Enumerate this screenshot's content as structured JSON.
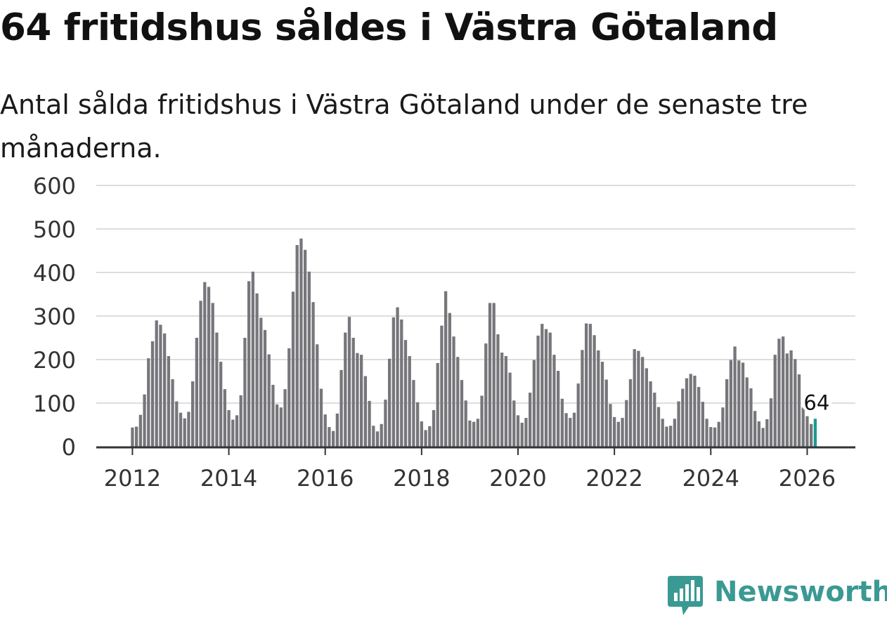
{
  "title": "64 fritidshus såldes i Västra Götaland",
  "subtitle": "Antal sålda fritidshus i Västra Götaland under de senaste tre månaderna.",
  "brand": {
    "name": "Newsworthy",
    "color": "#3a9a93",
    "icon": "bar-chart-speech-bubble-icon"
  },
  "colors": {
    "bar": "#77767b",
    "highlight": "#1a9a90",
    "grid": "#dddddd",
    "axis": "#333333",
    "tick_text": "#333333"
  },
  "chart_data": {
    "type": "bar",
    "title": "64 fritidshus såldes i Västra Götaland",
    "subtitle": "Antal sålda fritidshus i Västra Götaland under de senaste tre månaderna.",
    "xlabel": "",
    "ylabel": "",
    "ylim": [
      0,
      600
    ],
    "yticks": [
      "0",
      "100",
      "200",
      "300",
      "400",
      "500",
      "600"
    ],
    "xlim": [
      2011.25,
      2027.0
    ],
    "xticks": [
      "2012",
      "2014",
      "2016",
      "2018",
      "2020",
      "2022",
      "2024",
      "2026"
    ],
    "grid": true,
    "start": "2012-01",
    "frequency": "monthly",
    "values": [
      44,
      46,
      73,
      120,
      203,
      242,
      290,
      280,
      260,
      208,
      155,
      104,
      78,
      65,
      80,
      150,
      250,
      335,
      378,
      367,
      330,
      262,
      195,
      132,
      84,
      62,
      72,
      118,
      250,
      380,
      402,
      352,
      296,
      268,
      212,
      142,
      97,
      90,
      132,
      226,
      356,
      463,
      478,
      452,
      402,
      332,
      235,
      133,
      74,
      45,
      36,
      76,
      176,
      262,
      298,
      250,
      215,
      211,
      162,
      105,
      48,
      35,
      52,
      108,
      202,
      297,
      320,
      292,
      245,
      208,
      153,
      102,
      58,
      38,
      47,
      84,
      192,
      278,
      357,
      307,
      253,
      206,
      153,
      106,
      60,
      57,
      64,
      117,
      237,
      330,
      330,
      258,
      216,
      208,
      170,
      106,
      72,
      55,
      66,
      124,
      199,
      255,
      282,
      270,
      262,
      211,
      174,
      110,
      77,
      66,
      78,
      145,
      222,
      283,
      282,
      256,
      221,
      195,
      154,
      98,
      68,
      57,
      66,
      107,
      155,
      224,
      220,
      206,
      180,
      150,
      124,
      91,
      64,
      46,
      48,
      64,
      104,
      133,
      157,
      167,
      163,
      137,
      103,
      64,
      45,
      44,
      57,
      90,
      155,
      199,
      230,
      198,
      193,
      159,
      134,
      82,
      58,
      43,
      63,
      111,
      211,
      248,
      253,
      214,
      221,
      201,
      166,
      90,
      70,
      52,
      64
    ],
    "highlight": {
      "date": "2026-03",
      "value": 64,
      "label": "64"
    }
  }
}
